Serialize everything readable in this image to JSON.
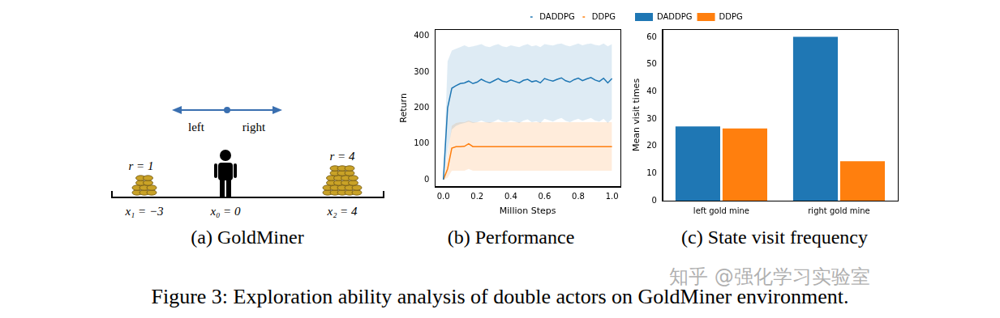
{
  "figure": {
    "caption": "Figure 3: Exploration ability analysis of double actors on GoldMiner environment.",
    "watermark": "知乎 @强化学习实验室"
  },
  "diagram": {
    "title": "(a) GoldMiner",
    "direction_labels": [
      "left",
      "right"
    ],
    "agent": {
      "position_label": "x₀ = 0"
    },
    "mines": [
      {
        "reward_label": "r = 1",
        "position_label": "x₁ = −3"
      },
      {
        "reward_label": "r = 4",
        "position_label": "x₂ = 4"
      }
    ]
  },
  "chart_data": [
    {
      "type": "line",
      "title": "(b) Performance",
      "x_label": "Million Steps",
      "y_label": "Return",
      "x": [
        0,
        0.025,
        0.05,
        0.075,
        0.1,
        0.125,
        0.15,
        0.175,
        0.2,
        0.225,
        0.25,
        0.275,
        0.3,
        0.325,
        0.35,
        0.375,
        0.4,
        0.425,
        0.45,
        0.475,
        0.5,
        0.525,
        0.55,
        0.575,
        0.6,
        0.625,
        0.65,
        0.675,
        0.7,
        0.725,
        0.75,
        0.775,
        0.8,
        0.825,
        0.85,
        0.875,
        0.9,
        0.925,
        0.95,
        0.975,
        1.0
      ],
      "series": [
        {
          "name": "DADDPG",
          "color": "#1f77b4",
          "values": [
            0,
            200,
            255,
            262,
            268,
            270,
            275,
            268,
            272,
            280,
            274,
            270,
            276,
            282,
            275,
            272,
            278,
            274,
            270,
            277,
            280,
            273,
            276,
            270,
            282,
            278,
            275,
            280,
            284,
            276,
            272,
            279,
            283,
            276,
            281,
            285,
            278,
            274,
            283,
            270,
            282
          ],
          "upper": [
            0,
            330,
            360,
            365,
            370,
            375,
            370,
            372,
            375,
            378,
            372,
            370,
            375,
            378,
            372,
            370,
            375,
            372,
            370,
            375,
            378,
            372,
            375,
            370,
            378,
            376,
            374,
            378,
            380,
            375,
            372,
            376,
            380,
            375,
            378,
            380,
            376,
            374,
            380,
            372,
            378
          ],
          "lower": [
            0,
            80,
            140,
            150,
            155,
            158,
            162,
            158,
            160,
            165,
            160,
            158,
            162,
            168,
            162,
            160,
            165,
            162,
            158,
            165,
            168,
            160,
            163,
            158,
            170,
            166,
            162,
            168,
            172,
            164,
            160,
            166,
            170,
            164,
            168,
            172,
            165,
            162,
            170,
            158,
            170
          ]
        },
        {
          "name": "DDPG",
          "color": "#ff7f0e",
          "values": [
            0,
            30,
            88,
            92,
            92,
            93,
            100,
            92,
            92,
            92,
            92,
            92,
            92,
            92,
            92,
            92,
            92,
            92,
            92,
            92,
            92,
            92,
            92,
            92,
            92,
            92,
            92,
            92,
            92,
            92,
            92,
            92,
            92,
            92,
            92,
            92,
            92,
            92,
            92,
            92,
            92
          ],
          "upper": [
            0,
            70,
            150,
            158,
            160,
            160,
            165,
            160,
            160,
            160,
            160,
            160,
            160,
            160,
            160,
            160,
            160,
            160,
            160,
            160,
            160,
            160,
            160,
            160,
            160,
            160,
            160,
            160,
            160,
            160,
            160,
            160,
            160,
            160,
            160,
            160,
            160,
            160,
            160,
            160,
            160
          ],
          "lower": [
            0,
            5,
            25,
            25,
            25,
            25,
            30,
            25,
            25,
            25,
            25,
            25,
            25,
            25,
            25,
            25,
            25,
            25,
            25,
            25,
            25,
            25,
            25,
            25,
            25,
            25,
            25,
            25,
            25,
            25,
            25,
            25,
            25,
            25,
            25,
            25,
            25,
            25,
            25,
            25,
            25
          ]
        }
      ],
      "xlim": [
        -0.05,
        1.05
      ],
      "xticks": [
        {
          "value": 0,
          "label": "0.0"
        },
        0.2,
        0.4,
        0.6,
        0.8,
        {
          "value": 1,
          "label": "1.0"
        }
      ],
      "ylim": [
        -20,
        420
      ],
      "yticks": [
        0,
        100,
        200,
        300,
        400
      ],
      "grid": false,
      "legend": "upper right"
    },
    {
      "type": "bar",
      "title": "(c) State visit frequency",
      "y_label": "Mean visit times",
      "categories": [
        "left gold mine",
        "right gold mine"
      ],
      "series": [
        {
          "name": "DADDPG",
          "color": "#1f77b4",
          "values": [
            27.3,
            60.2
          ]
        },
        {
          "name": "DDPG",
          "color": "#ff7f0e",
          "values": [
            26.5,
            14.5
          ]
        }
      ],
      "ylim": [
        0,
        63
      ],
      "yticks": [
        0,
        10,
        20,
        30,
        40,
        50,
        60
      ],
      "grid": false,
      "legend": "upper left"
    }
  ]
}
